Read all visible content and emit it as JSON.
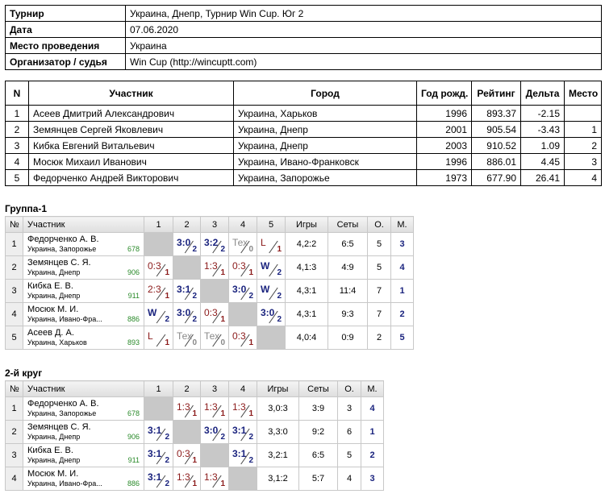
{
  "info": {
    "rows": [
      [
        "Турнир",
        "Украина, Днепр, Турнир Win Cup. Юг 2"
      ],
      [
        "Дата",
        "07.06.2020"
      ],
      [
        "Место проведения",
        "Украина"
      ],
      [
        "Организатор / судья",
        "Win Cup (http://wincuptt.com)"
      ]
    ]
  },
  "participants": {
    "header": [
      "N",
      "Участник",
      "Город",
      "Год рожд.",
      "Рейтинг",
      "Дельта",
      "Место"
    ],
    "rows": [
      [
        "1",
        "Асеев Дмитрий Александрович",
        "Украина, Харьков",
        "1996",
        "893.37",
        "-2.15",
        null
      ],
      [
        "2",
        "Земянцев Сергей Яковлевич",
        "Украина, Днепр",
        "2001",
        "905.54",
        "-3.43",
        "1"
      ],
      [
        "3",
        "Кибка Евгений Витальевич",
        "Украина, Днепр",
        "2003",
        "910.52",
        "1.09",
        "2"
      ],
      [
        "4",
        "Мосюк Михаил Иванович",
        "Украина, Ивано-Франковск",
        "1996",
        "886.01",
        "4.45",
        "3"
      ],
      [
        "5",
        "Федорченко Андрей Викторович",
        "Украина, Запорожье",
        "1973",
        "677.90",
        "26.41",
        "4"
      ]
    ]
  },
  "groups": [
    {
      "title": "Группа-1",
      "header": [
        "№",
        "Участник",
        "1",
        "2",
        "3",
        "4",
        "5",
        "Игры",
        "Сеты",
        "О.",
        "М."
      ],
      "rows": [
        {
          "num": "1",
          "name": "Федорченко А. В.",
          "city": "Украина, Запорожье",
          "rating": "678",
          "cells": [
            null,
            {
              "score": "3:0",
              "points": 2
            },
            {
              "score": "3:2",
              "points": 2
            },
            {
              "score": "Тех",
              "points": 0
            },
            {
              "score": "L",
              "points": 1
            }
          ],
          "games": "4,2:2",
          "sets": "6:5",
          "total": "5",
          "place": "3"
        },
        {
          "num": "2",
          "name": "Земянцев С. Я.",
          "city": "Украина, Днепр",
          "rating": "906",
          "cells": [
            {
              "score": "0:3",
              "points": 1
            },
            null,
            {
              "score": "1:3",
              "points": 1
            },
            {
              "score": "0:3",
              "points": 1
            },
            {
              "score": "W",
              "points": 2
            }
          ],
          "games": "4,1:3",
          "sets": "4:9",
          "total": "5",
          "place": "4"
        },
        {
          "num": "3",
          "name": "Кибка Е. В.",
          "city": "Украина, Днепр",
          "rating": "911",
          "cells": [
            {
              "score": "2:3",
              "points": 1
            },
            {
              "score": "3:1",
              "points": 2
            },
            null,
            {
              "score": "3:0",
              "points": 2
            },
            {
              "score": "W",
              "points": 2
            }
          ],
          "games": "4,3:1",
          "sets": "11:4",
          "total": "7",
          "place": "1"
        },
        {
          "num": "4",
          "name": "Мосюк М. И.",
          "city": "Украина, Ивано-Фра...",
          "rating": "886",
          "cells": [
            {
              "score": "W",
              "points": 2
            },
            {
              "score": "3:0",
              "points": 2
            },
            {
              "score": "0:3",
              "points": 1
            },
            null,
            {
              "score": "3:0",
              "points": 2
            }
          ],
          "games": "4,3:1",
          "sets": "9:3",
          "total": "7",
          "place": "2"
        },
        {
          "num": "5",
          "name": "Асеев Д. А.",
          "city": "Украина, Харьков",
          "rating": "893",
          "cells": [
            {
              "score": "L",
              "points": 1
            },
            {
              "score": "Тех",
              "points": 0
            },
            {
              "score": "Тех",
              "points": 0
            },
            {
              "score": "0:3",
              "points": 1
            },
            null
          ],
          "games": "4,0:4",
          "sets": "0:9",
          "total": "2",
          "place": "5"
        }
      ]
    },
    {
      "title": "2-й круг",
      "header": [
        "№",
        "Участник",
        "1",
        "2",
        "3",
        "4",
        "Игры",
        "Сеты",
        "О.",
        "М."
      ],
      "rows": [
        {
          "num": "1",
          "name": "Федорченко А. В.",
          "city": "Украина, Запорожье",
          "rating": "678",
          "cells": [
            null,
            {
              "score": "1:3",
              "points": 1
            },
            {
              "score": "1:3",
              "points": 1
            },
            {
              "score": "1:3",
              "points": 1
            }
          ],
          "games": "3,0:3",
          "sets": "3:9",
          "total": "3",
          "place": "4"
        },
        {
          "num": "2",
          "name": "Земянцев С. Я.",
          "city": "Украина, Днепр",
          "rating": "906",
          "cells": [
            {
              "score": "3:1",
              "points": 2
            },
            null,
            {
              "score": "3:0",
              "points": 2
            },
            {
              "score": "3:1",
              "points": 2
            }
          ],
          "games": "3,3:0",
          "sets": "9:2",
          "total": "6",
          "place": "1"
        },
        {
          "num": "3",
          "name": "Кибка Е. В.",
          "city": "Украина, Днепр",
          "rating": "911",
          "cells": [
            {
              "score": "3:1",
              "points": 2
            },
            {
              "score": "0:3",
              "points": 1
            },
            null,
            {
              "score": "3:1",
              "points": 2
            }
          ],
          "games": "3,2:1",
          "sets": "6:5",
          "total": "5",
          "place": "2"
        },
        {
          "num": "4",
          "name": "Мосюк М. И.",
          "city": "Украина, Ивано-Фра...",
          "rating": "886",
          "cells": [
            {
              "score": "3:1",
              "points": 2
            },
            {
              "score": "1:3",
              "points": 1
            },
            {
              "score": "1:3",
              "points": 1
            },
            null
          ],
          "games": "3,1:2",
          "sets": "5:7",
          "total": "4",
          "place": "3"
        }
      ]
    }
  ]
}
